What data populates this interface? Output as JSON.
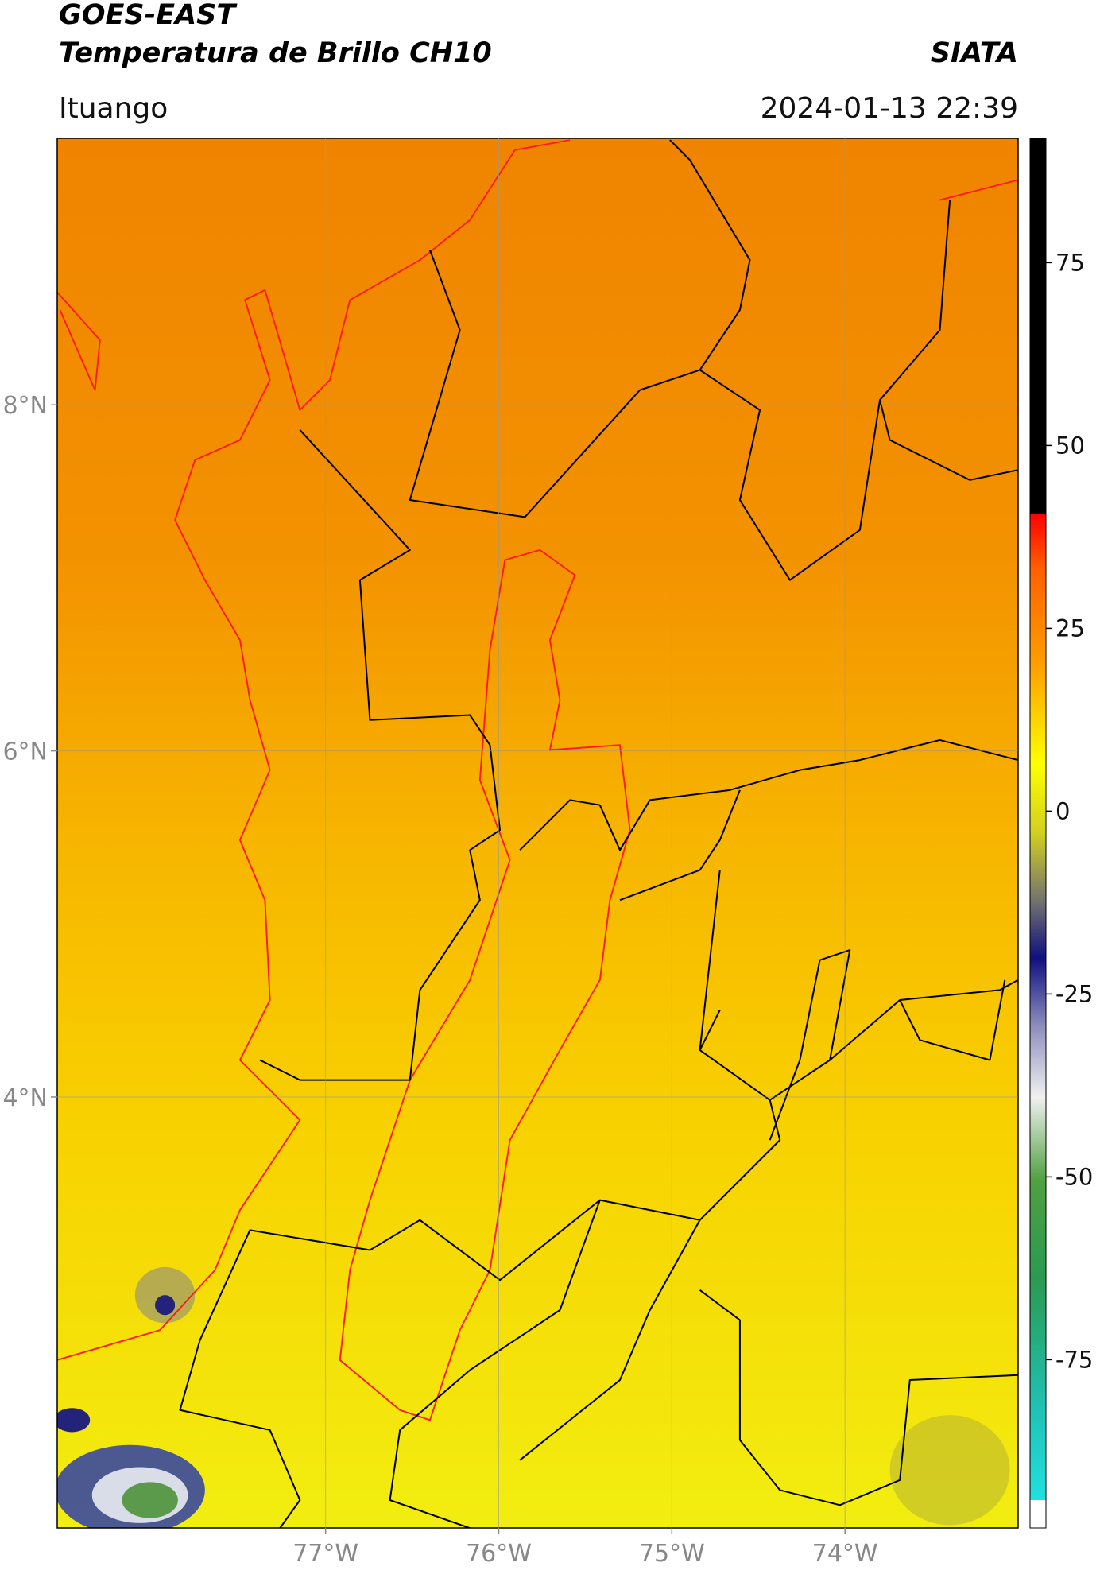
{
  "chart_data": {
    "type": "map",
    "title": "GOES-EAST",
    "subtitle": "Temperatura de Brillo CH10",
    "source": "SIATA",
    "region": "Ituango",
    "datetime": "2024-01-13 22:39",
    "xlim": [
      -78.55,
      -73.0
    ],
    "ylim": [
      1.51,
      9.54
    ],
    "xticks": [
      {
        "value": -77,
        "label": "77°W"
      },
      {
        "value": -76,
        "label": "76°W"
      },
      {
        "value": -75,
        "label": "75°W"
      },
      {
        "value": -74,
        "label": "74°W"
      }
    ],
    "yticks": [
      {
        "value": 4,
        "label": "4°N"
      },
      {
        "value": 6,
        "label": "6°N"
      },
      {
        "value": 8,
        "label": "8°N"
      }
    ],
    "grid": true,
    "colorbar": {
      "lim": [
        -98,
        92
      ],
      "ticks": [
        -75,
        -50,
        -25,
        0,
        25,
        50,
        75
      ]
    }
  }
}
